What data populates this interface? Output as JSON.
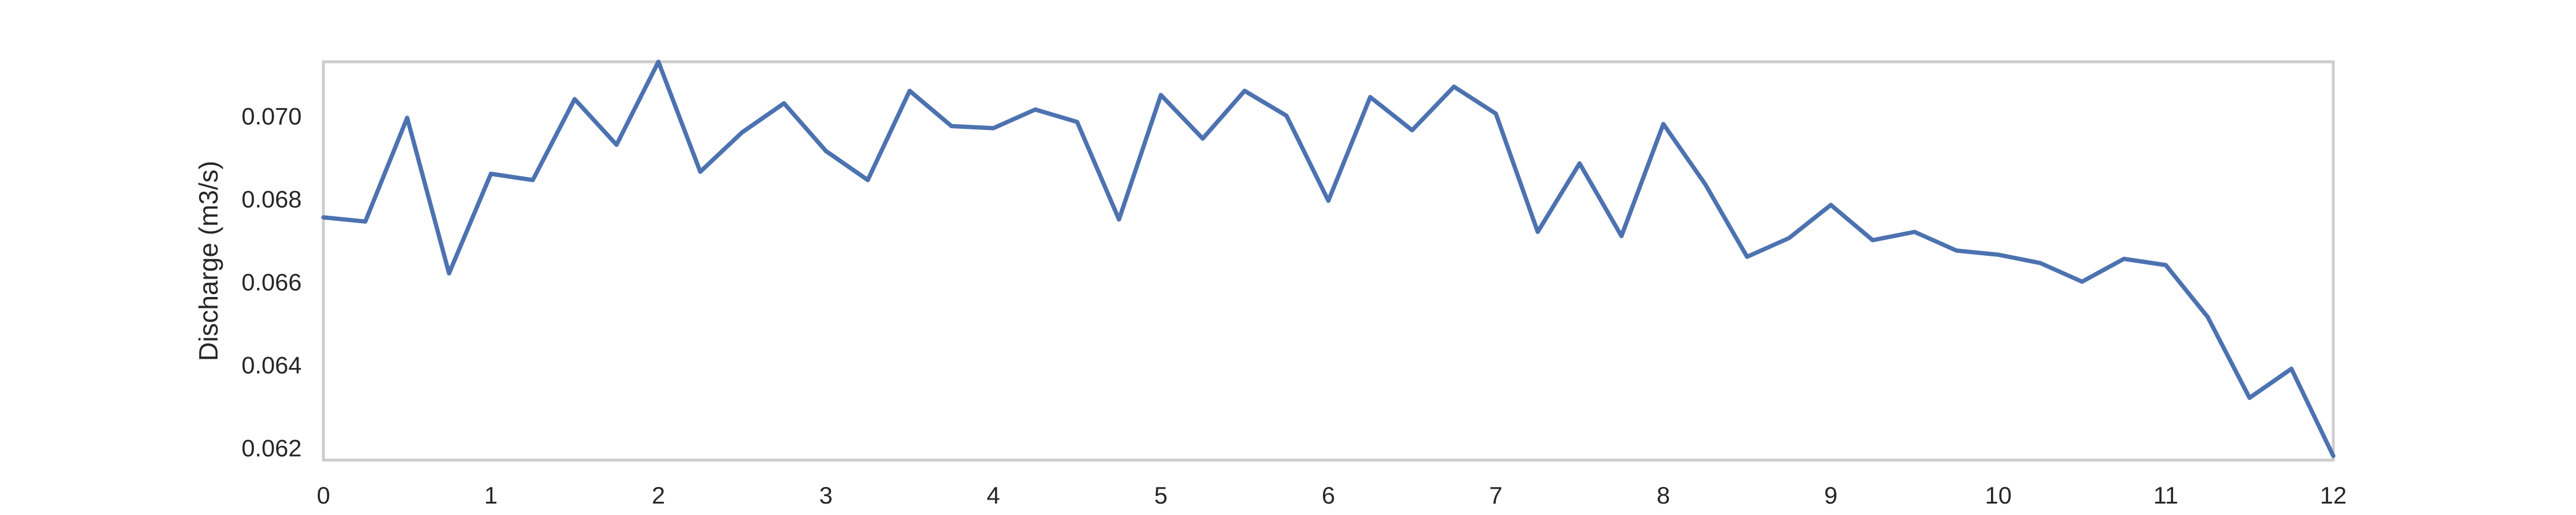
{
  "chart_data": {
    "type": "line",
    "title": "",
    "xlabel": "",
    "ylabel": "Discharge (m3/s)",
    "xlim": [
      0,
      12
    ],
    "ylim": [
      0.0617,
      0.0713
    ],
    "grid": false,
    "x_ticks": [
      0,
      1,
      2,
      3,
      4,
      5,
      6,
      7,
      8,
      9,
      10,
      11,
      12
    ],
    "x_tick_labels": [
      "0",
      "1",
      "2",
      "3",
      "4",
      "5",
      "6",
      "7",
      "8",
      "9",
      "10",
      "11",
      "12"
    ],
    "y_ticks": [
      0.062,
      0.064,
      0.066,
      0.068,
      0.07
    ],
    "y_tick_labels": [
      "0.062",
      "0.064",
      "0.066",
      "0.068",
      "0.070"
    ],
    "colors": {
      "line": "#4C72B0",
      "frame": "#CCCCCC",
      "text": "#262626"
    },
    "series": [
      {
        "x": [
          0,
          0.25,
          0.5,
          0.75,
          1,
          1.25,
          1.5,
          1.75,
          2,
          2.25,
          2.5,
          2.75,
          3,
          3.25,
          3.5,
          3.75,
          4,
          4.25,
          4.5,
          4.75,
          5,
          5.25,
          5.5,
          5.75,
          6,
          6.25,
          6.5,
          6.75,
          7,
          7.25,
          7.5,
          7.75,
          8,
          8.25,
          8.5,
          8.75,
          9,
          9.25,
          9.5,
          9.75,
          10,
          10.25,
          10.5,
          10.75,
          11,
          11.25,
          11.5,
          11.75,
          12
        ],
        "values": [
          0.06755,
          0.06745,
          0.06995,
          0.0662,
          0.0686,
          0.06845,
          0.0704,
          0.0693,
          0.0713,
          0.06865,
          0.0696,
          0.0703,
          0.06915,
          0.06845,
          0.0706,
          0.06975,
          0.0697,
          0.07015,
          0.06985,
          0.0675,
          0.0705,
          0.06945,
          0.0706,
          0.07,
          0.06795,
          0.07045,
          0.06965,
          0.0707,
          0.07005,
          0.0672,
          0.06885,
          0.0671,
          0.0698,
          0.06835,
          0.0666,
          0.06705,
          0.06785,
          0.067,
          0.0672,
          0.06675,
          0.06665,
          0.06645,
          0.066,
          0.06655,
          0.0664,
          0.06515,
          0.0632,
          0.0639,
          0.0618
        ]
      }
    ]
  }
}
